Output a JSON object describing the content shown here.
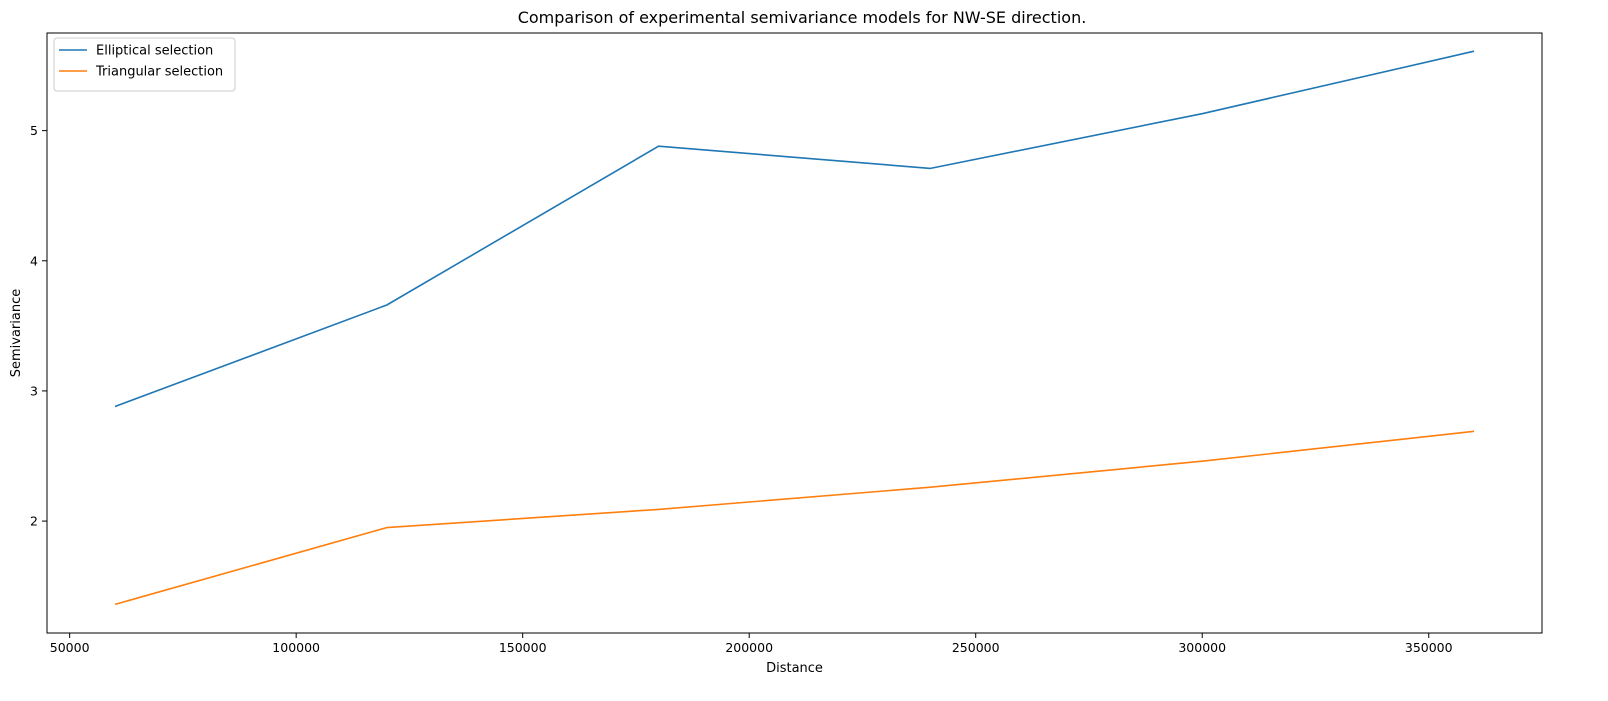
{
  "chart_data": {
    "type": "line",
    "title": "Comparison of experimental semivariance models for NW-SE direction.",
    "xlabel": "Distance",
    "ylabel": "Semivariance",
    "xlim": [
      45000,
      375000
    ],
    "ylim": [
      1.14,
      5.75
    ],
    "xticks": [
      50000,
      100000,
      150000,
      200000,
      250000,
      300000,
      350000
    ],
    "yticks": [
      2,
      3,
      4,
      5
    ],
    "grid": false,
    "legend_position": "top-left",
    "series": [
      {
        "name": "Elliptical selection",
        "color": "#1f77b4",
        "x": [
          60000,
          120000,
          180000,
          240000,
          300000,
          360000
        ],
        "y": [
          2.88,
          3.66,
          4.88,
          4.71,
          5.13,
          5.61
        ]
      },
      {
        "name": "Triangular selection",
        "color": "#ff7f0e",
        "x": [
          60000,
          120000,
          180000,
          240000,
          300000,
          360000
        ],
        "y": [
          1.36,
          1.95,
          2.09,
          2.26,
          2.46,
          2.69
        ]
      }
    ]
  }
}
